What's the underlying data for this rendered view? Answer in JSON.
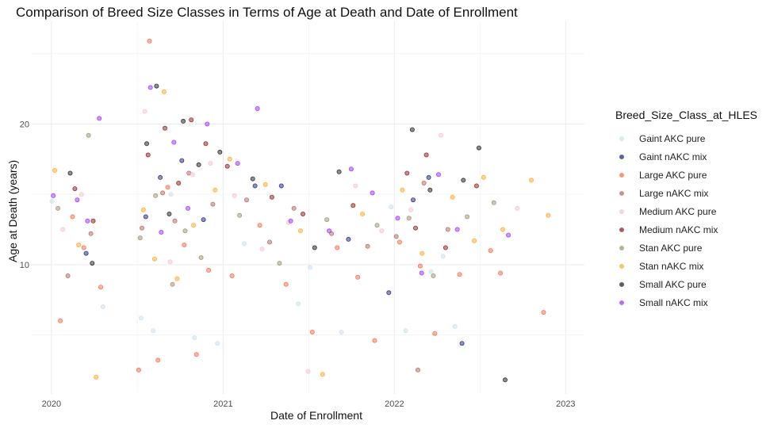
{
  "chart_data": {
    "type": "scatter",
    "title": "Comparison of Breed Size Classes in Terms of Age at Death and Date of Enrollment",
    "xlabel": "Date of Enrollment",
    "ylabel": "Age at Death (years)",
    "x_type": "date",
    "xlim": [
      "2019-11-20",
      "2023-02-10"
    ],
    "ylim": [
      0.8,
      27.3
    ],
    "x_ticks": [
      {
        "value": "2020-01-01",
        "label": "2020"
      },
      {
        "value": "2021-01-01",
        "label": "2021"
      },
      {
        "value": "2022-01-01",
        "label": "2022"
      },
      {
        "value": "2023-01-01",
        "label": "2023"
      }
    ],
    "y_ticks": [
      {
        "value": 10,
        "label": "10"
      },
      {
        "value": 20,
        "label": "20"
      }
    ],
    "grid": true,
    "point_alpha": 0.5,
    "legend": {
      "title": "Breed_Size_Class_at_HLES",
      "position": "right"
    },
    "series": [
      {
        "name": "Gaint AKC pure",
        "color": "#c6e2ee",
        "points": [
          [
            "2020-01-02",
            14.5
          ],
          [
            "2020-04-20",
            7.0
          ],
          [
            "2020-07-10",
            6.2
          ],
          [
            "2020-08-05",
            5.3
          ],
          [
            "2020-09-12",
            15.0
          ],
          [
            "2020-11-01",
            4.8
          ],
          [
            "2020-12-20",
            4.4
          ],
          [
            "2021-02-15",
            11.5
          ],
          [
            "2021-06-10",
            7.2
          ],
          [
            "2021-07-05",
            9.8
          ],
          [
            "2021-09-10",
            5.2
          ],
          [
            "2021-12-25",
            14.1
          ],
          [
            "2022-01-25",
            5.3
          ],
          [
            "2022-03-20",
            9.5
          ],
          [
            "2022-04-15",
            10.6
          ],
          [
            "2022-05-10",
            5.6
          ]
        ]
      },
      {
        "name": "Gaint nAKC mix",
        "color": "#1a237e",
        "points": [
          [
            "2020-03-15",
            10.8
          ],
          [
            "2020-07-20",
            13.4
          ],
          [
            "2020-08-20",
            16.2
          ],
          [
            "2020-10-05",
            17.4
          ],
          [
            "2020-11-20",
            13.2
          ],
          [
            "2021-03-10",
            15.6
          ],
          [
            "2021-05-05",
            15.6
          ],
          [
            "2021-09-25",
            11.8
          ],
          [
            "2021-12-20",
            8.0
          ],
          [
            "2022-02-10",
            14.6
          ],
          [
            "2022-03-15",
            16.2
          ],
          [
            "2022-05-25",
            4.4
          ]
        ]
      },
      {
        "name": "Large AKC pure",
        "color": "#f4694a",
        "points": [
          [
            "2020-01-20",
            6.0
          ],
          [
            "2020-02-15",
            13.4
          ],
          [
            "2020-03-10",
            11.2
          ],
          [
            "2020-04-15",
            8.4
          ],
          [
            "2020-07-05",
            2.5
          ],
          [
            "2020-07-28",
            25.9
          ],
          [
            "2020-08-15",
            3.2
          ],
          [
            "2020-09-05",
            15.5
          ],
          [
            "2020-10-10",
            11.4
          ],
          [
            "2020-11-05",
            3.6
          ],
          [
            "2020-12-01",
            9.6
          ],
          [
            "2021-01-20",
            9.2
          ],
          [
            "2021-03-20",
            12.8
          ],
          [
            "2021-05-15",
            8.6
          ],
          [
            "2021-07-10",
            5.2
          ],
          [
            "2021-09-01",
            11.2
          ],
          [
            "2021-10-15",
            9.1
          ],
          [
            "2021-11-20",
            4.6
          ],
          [
            "2022-01-12",
            11.6
          ],
          [
            "2022-02-25",
            9.9
          ],
          [
            "2022-03-28",
            5.1
          ],
          [
            "2022-05-20",
            9.3
          ],
          [
            "2022-07-25",
            11.0
          ],
          [
            "2022-08-15",
            9.4
          ],
          [
            "2022-11-15",
            6.6
          ]
        ]
      },
      {
        "name": "Large nAKC mix",
        "color": "#b0675e",
        "points": [
          [
            "2020-02-05",
            9.2
          ],
          [
            "2020-03-25",
            12.2
          ],
          [
            "2020-07-12",
            12.6
          ],
          [
            "2020-08-25",
            15.1
          ],
          [
            "2020-09-20",
            13.1
          ],
          [
            "2020-10-20",
            16.5
          ],
          [
            "2020-12-10",
            14.3
          ],
          [
            "2021-02-20",
            14.6
          ],
          [
            "2021-04-10",
            11.6
          ],
          [
            "2021-06-01",
            14.0
          ],
          [
            "2021-08-20",
            12.2
          ],
          [
            "2021-11-05",
            11.3
          ],
          [
            "2022-01-05",
            12.0
          ],
          [
            "2022-02-20",
            2.5
          ],
          [
            "2022-03-05",
            15.8
          ],
          [
            "2022-04-25",
            12.5
          ]
        ]
      },
      {
        "name": "Medium AKC pure",
        "color": "#f7c1cc",
        "points": [
          [
            "2020-01-25",
            12.5
          ],
          [
            "2020-03-05",
            15.0
          ],
          [
            "2020-07-18",
            20.9
          ],
          [
            "2020-09-10",
            10.2
          ],
          [
            "2020-10-28",
            16.4
          ],
          [
            "2020-12-05",
            17.2
          ],
          [
            "2021-01-25",
            14.9
          ],
          [
            "2021-03-25",
            11.1
          ],
          [
            "2021-05-20",
            13.0
          ],
          [
            "2021-07-01",
            2.4
          ],
          [
            "2021-10-10",
            15.6
          ],
          [
            "2021-12-05",
            12.4
          ],
          [
            "2022-02-05",
            13.9
          ],
          [
            "2022-04-10",
            19.2
          ],
          [
            "2022-09-20",
            14.0
          ]
        ]
      },
      {
        "name": "Medium nAKC mix",
        "color": "#8b1a1a",
        "points": [
          [
            "2020-02-20",
            15.4
          ],
          [
            "2020-03-30",
            13.1
          ],
          [
            "2020-07-25",
            17.8
          ],
          [
            "2020-08-30",
            19.7
          ],
          [
            "2020-09-28",
            15.8
          ],
          [
            "2020-10-25",
            20.3
          ],
          [
            "2020-11-25",
            18.6
          ],
          [
            "2021-01-10",
            17.0
          ],
          [
            "2021-04-15",
            14.8
          ],
          [
            "2021-06-20",
            13.6
          ],
          [
            "2021-10-05",
            14.2
          ],
          [
            "2022-01-28",
            16.5
          ],
          [
            "2022-02-15",
            12.6
          ],
          [
            "2022-03-10",
            17.8
          ],
          [
            "2022-04-20",
            11.2
          ],
          [
            "2022-06-25",
            15.6
          ]
        ]
      },
      {
        "name": "Stan AKC pure",
        "color": "#9b8f6c",
        "points": [
          [
            "2020-01-15",
            14.0
          ],
          [
            "2020-03-20",
            19.2
          ],
          [
            "2020-07-08",
            11.9
          ],
          [
            "2020-08-10",
            14.9
          ],
          [
            "2020-09-15",
            8.6
          ],
          [
            "2020-10-12",
            12.4
          ],
          [
            "2020-11-15",
            10.5
          ],
          [
            "2021-02-05",
            13.5
          ],
          [
            "2021-05-01",
            10.1
          ],
          [
            "2021-08-10",
            13.2
          ],
          [
            "2021-11-25",
            12.8
          ],
          [
            "2022-02-01",
            13.3
          ],
          [
            "2022-03-25",
            9.2
          ],
          [
            "2022-06-05",
            13.4
          ],
          [
            "2022-08-01",
            14.4
          ]
        ]
      },
      {
        "name": "Stan nAKC mix",
        "color": "#ffa726",
        "points": [
          [
            "2020-01-08",
            16.7
          ],
          [
            "2020-02-28",
            11.4
          ],
          [
            "2020-04-05",
            2.0
          ],
          [
            "2020-07-15",
            13.9
          ],
          [
            "2020-08-08",
            10.4
          ],
          [
            "2020-08-28",
            22.3
          ],
          [
            "2020-09-25",
            9.0
          ],
          [
            "2020-10-30",
            12.8
          ],
          [
            "2020-12-15",
            15.3
          ],
          [
            "2021-01-15",
            17.5
          ],
          [
            "2021-04-01",
            15.7
          ],
          [
            "2021-06-15",
            12.4
          ],
          [
            "2021-08-01",
            2.2
          ],
          [
            "2021-10-25",
            13.6
          ],
          [
            "2022-01-18",
            15.3
          ],
          [
            "2022-03-01",
            10.8
          ],
          [
            "2022-05-05",
            14.8
          ],
          [
            "2022-06-20",
            11.7
          ],
          [
            "2022-07-10",
            16.2
          ],
          [
            "2022-08-20",
            12.5
          ],
          [
            "2022-10-20",
            16.0
          ],
          [
            "2022-11-25",
            13.5
          ]
        ]
      },
      {
        "name": "Small AKC pure",
        "color": "#1c1c1c",
        "points": [
          [
            "2020-02-10",
            16.5
          ],
          [
            "2020-03-28",
            10.1
          ],
          [
            "2020-07-22",
            18.6
          ],
          [
            "2020-08-12",
            22.7
          ],
          [
            "2020-09-08",
            13.6
          ],
          [
            "2020-10-08",
            20.2
          ],
          [
            "2020-11-10",
            17.1
          ],
          [
            "2020-12-25",
            18.0
          ],
          [
            "2021-03-05",
            16.1
          ],
          [
            "2021-07-15",
            11.2
          ],
          [
            "2021-09-05",
            16.6
          ],
          [
            "2022-02-08",
            19.6
          ],
          [
            "2022-03-18",
            15.3
          ],
          [
            "2022-05-28",
            16.0
          ],
          [
            "2022-06-30",
            18.3
          ],
          [
            "2022-08-25",
            1.8
          ]
        ]
      },
      {
        "name": "Small nAKC mix",
        "color": "#9b30ff",
        "points": [
          [
            "2020-01-05",
            14.9
          ],
          [
            "2020-02-25",
            14.6
          ],
          [
            "2020-03-18",
            13.1
          ],
          [
            "2020-04-12",
            20.4
          ],
          [
            "2020-07-30",
            22.6
          ],
          [
            "2020-08-22",
            12.3
          ],
          [
            "2020-09-18",
            18.7
          ],
          [
            "2020-10-18",
            14.0
          ],
          [
            "2020-11-28",
            20.0
          ],
          [
            "2021-02-01",
            17.2
          ],
          [
            "2021-03-15",
            21.1
          ],
          [
            "2021-05-25",
            13.1
          ],
          [
            "2021-08-15",
            12.4
          ],
          [
            "2021-10-01",
            16.8
          ],
          [
            "2021-11-15",
            15.1
          ],
          [
            "2022-01-08",
            13.3
          ],
          [
            "2022-02-28",
            9.4
          ],
          [
            "2022-04-05",
            16.4
          ],
          [
            "2022-05-15",
            12.5
          ],
          [
            "2022-09-01",
            12.1
          ]
        ]
      }
    ]
  }
}
